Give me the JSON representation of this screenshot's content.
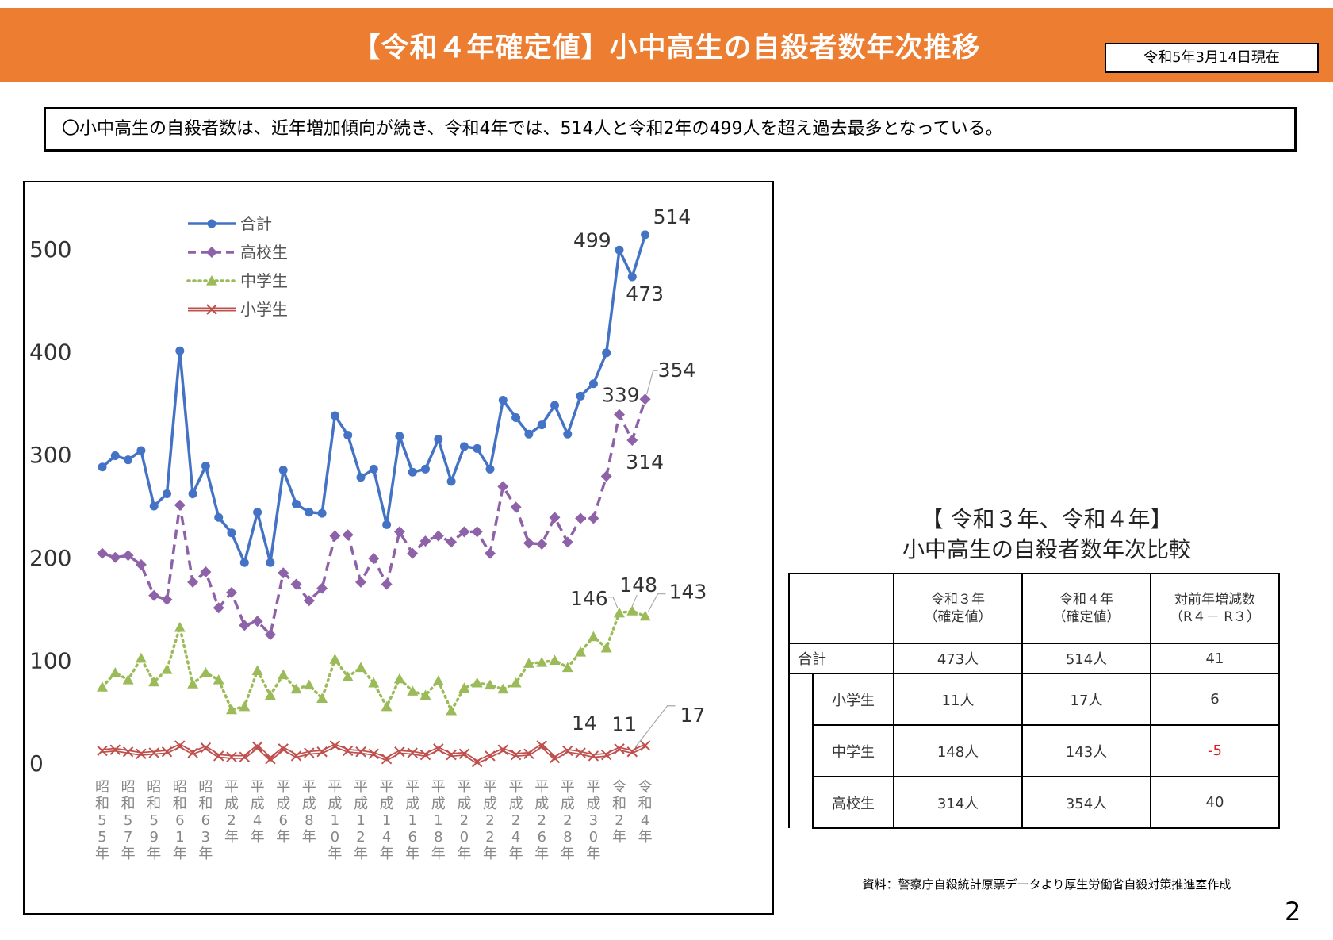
{
  "header": {
    "title": "【令和４年確定値】小中高生の自殺者数年次推移",
    "as_of": "令和5年3月14日現在"
  },
  "summary": "〇小中高生の自殺者数は、近年増加傾向が続き、令和4年では、514人と令和2年の499人を超え過去最多となっている。",
  "colors": {
    "header": "#ed7d31",
    "total": "#4472c4",
    "high": "#8e62a8",
    "middle": "#9bbb59",
    "elementary": "#c0504d",
    "negative": "#e02020"
  },
  "chart_data": {
    "type": "line",
    "ylim": [
      0,
      500
    ],
    "y_ticks": [
      0,
      100,
      200,
      300,
      400,
      500
    ],
    "categories": [
      "昭和55年",
      "昭和56年",
      "昭和57年",
      "昭和58年",
      "昭和59年",
      "昭和60年",
      "昭和61年",
      "昭和62年",
      "昭和63年",
      "平成1年",
      "平成2年",
      "平成3年",
      "平成4年",
      "平成5年",
      "平成6年",
      "平成7年",
      "平成8年",
      "平成9年",
      "平成10年",
      "平成11年",
      "平成12年",
      "平成13年",
      "平成14年",
      "平成15年",
      "平成16年",
      "平成17年",
      "平成18年",
      "平成19年",
      "平成20年",
      "平成21年",
      "平成22年",
      "平成23年",
      "平成24年",
      "平成25年",
      "平成26年",
      "平成27年",
      "平成28年",
      "平成29年",
      "平成30年",
      "令和1年",
      "令和2年",
      "令和3年",
      "令和4年"
    ],
    "x_tick_labels": [
      {
        "index": 0,
        "label": "昭和55年"
      },
      {
        "index": 2,
        "label": "昭和57年"
      },
      {
        "index": 4,
        "label": "昭和59年"
      },
      {
        "index": 6,
        "label": "昭和61年"
      },
      {
        "index": 8,
        "label": "昭和63年"
      },
      {
        "index": 10,
        "label": "平成2年"
      },
      {
        "index": 12,
        "label": "平成4年"
      },
      {
        "index": 14,
        "label": "平成6年"
      },
      {
        "index": 16,
        "label": "平成8年"
      },
      {
        "index": 18,
        "label": "平成10年"
      },
      {
        "index": 20,
        "label": "平成12年"
      },
      {
        "index": 22,
        "label": "平成14年"
      },
      {
        "index": 24,
        "label": "平成16年"
      },
      {
        "index": 26,
        "label": "平成18年"
      },
      {
        "index": 28,
        "label": "平成20年"
      },
      {
        "index": 30,
        "label": "平成22年"
      },
      {
        "index": 32,
        "label": "平成24年"
      },
      {
        "index": 34,
        "label": "平成26年"
      },
      {
        "index": 36,
        "label": "平成28年"
      },
      {
        "index": 38,
        "label": "平成30年"
      },
      {
        "index": 40,
        "label": "令和2年"
      },
      {
        "index": 42,
        "label": "令和4年"
      }
    ],
    "series": [
      {
        "name": "合計",
        "key": "total",
        "style": "solid-circle",
        "values": [
          288,
          299,
          295,
          304,
          250,
          262,
          401,
          262,
          289,
          239,
          224,
          195,
          244,
          195,
          285,
          252,
          244,
          243,
          338,
          319,
          278,
          286,
          232,
          318,
          283,
          286,
          315,
          274,
          308,
          306,
          286,
          353,
          336,
          320,
          329,
          348,
          320,
          357,
          369,
          399,
          499,
          473,
          514
        ]
      },
      {
        "name": "高校生",
        "key": "high",
        "style": "dash-diamond",
        "values": [
          204,
          200,
          202,
          193,
          163,
          159,
          251,
          176,
          186,
          151,
          166,
          134,
          138,
          125,
          185,
          174,
          158,
          170,
          221,
          222,
          176,
          199,
          174,
          225,
          204,
          216,
          221,
          215,
          225,
          225,
          204,
          269,
          249,
          214,
          213,
          239,
          215,
          238,
          238,
          279,
          339,
          314,
          354
        ]
      },
      {
        "name": "中学生",
        "key": "middle",
        "style": "dot-triangle",
        "values": [
          74,
          88,
          81,
          102,
          79,
          91,
          132,
          77,
          88,
          81,
          52,
          55,
          90,
          66,
          86,
          72,
          76,
          63,
          101,
          84,
          93,
          78,
          55,
          82,
          70,
          66,
          80,
          51,
          73,
          78,
          76,
          72,
          78,
          97,
          98,
          100,
          93,
          108,
          123,
          112,
          146,
          148,
          143
        ]
      },
      {
        "name": "小学生",
        "key": "elementary",
        "style": "double-x",
        "values": [
          12,
          13,
          11,
          9,
          10,
          11,
          17,
          10,
          15,
          7,
          6,
          6,
          16,
          4,
          14,
          7,
          10,
          11,
          17,
          12,
          11,
          9,
          4,
          11,
          10,
          8,
          14,
          8,
          9,
          1,
          7,
          13,
          8,
          9,
          17,
          5,
          12,
          10,
          7,
          8,
          14,
          11,
          17
        ]
      }
    ],
    "annotations": {
      "total": [
        {
          "index": 40,
          "label": "499"
        },
        {
          "index": 41,
          "label": "473"
        },
        {
          "index": 42,
          "label": "514"
        }
      ],
      "high": [
        {
          "index": 40,
          "label": "339"
        },
        {
          "index": 41,
          "label": "314"
        },
        {
          "index": 42,
          "label": "354"
        }
      ],
      "middle": [
        {
          "index": 40,
          "label": "146"
        },
        {
          "index": 41,
          "label": "148"
        },
        {
          "index": 42,
          "label": "143"
        }
      ],
      "elementary": [
        {
          "index": 40,
          "label": "14"
        },
        {
          "index": 41,
          "label": "11"
        },
        {
          "index": 42,
          "label": "17"
        }
      ]
    },
    "legend_position": "top-left",
    "grid": false
  },
  "comparison": {
    "title_line1": "【 令和３年、令和４年】",
    "title_line2": "小中高生の自殺者数年次比較",
    "headers": [
      {
        "line1": "令和３年",
        "line2": "（確定値）"
      },
      {
        "line1": "令和４年",
        "line2": "（確定値）"
      },
      {
        "line1": "対前年増減数",
        "line2": "（R４－ R３）"
      }
    ],
    "total_row": {
      "label": "合計",
      "r3": "473人",
      "r4": "514人",
      "diff": "41"
    },
    "rows": [
      {
        "label": "小学生",
        "r3": "11人",
        "r4": "17人",
        "diff": "6"
      },
      {
        "label": "中学生",
        "r3": "148人",
        "r4": "143人",
        "diff": "-5"
      },
      {
        "label": "高校生",
        "r3": "314人",
        "r4": "354人",
        "diff": "40"
      }
    ]
  },
  "source": "資料：警察庁自殺統計原票データより厚生労働省自殺対策推進室作成",
  "page_number": "2"
}
